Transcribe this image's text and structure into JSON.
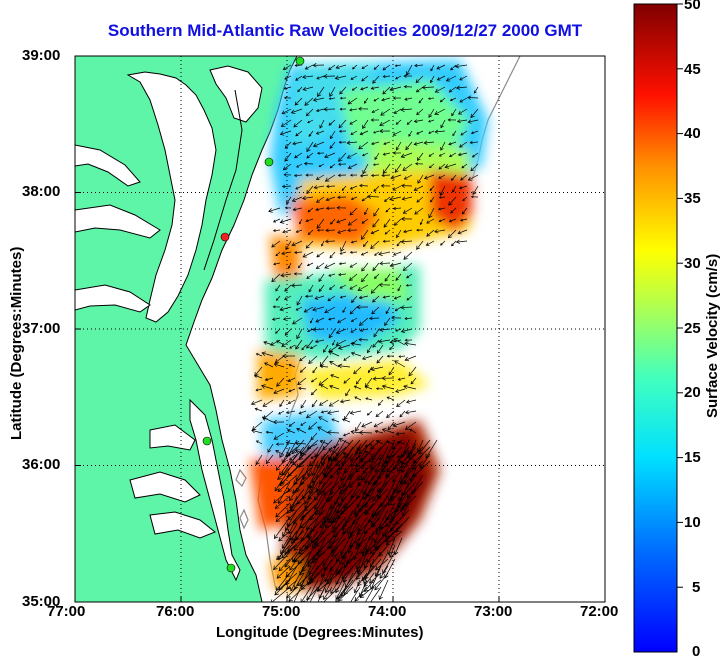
{
  "title": "Southern Mid-Atlantic Raw Velocities 2009/12/27 2000 GMT",
  "axes": {
    "xlabel": "Longitude (Degrees:Minutes)",
    "ylabel": "Latitude (Degrees:Minutes)",
    "xticks": [
      "77:00",
      "76:00",
      "75:00",
      "74:00",
      "73:00",
      "72:00"
    ],
    "yticks": [
      "39:00",
      "38:00",
      "37:00",
      "36:00",
      "35:00"
    ],
    "xlim_deg_west": [
      77,
      72
    ],
    "ylim_deg_north": [
      35,
      39
    ],
    "grid": "dotted"
  },
  "colorbar": {
    "label": "Surface Velocity (cm/s)",
    "ticks": [
      "0",
      "5",
      "10",
      "15",
      "20",
      "25",
      "30",
      "35",
      "40",
      "45",
      "50"
    ],
    "range": [
      0,
      50
    ],
    "colormap": "jet"
  },
  "colors": {
    "title": "#1010e0",
    "land": "#5ff5a8",
    "coast": "#000000",
    "bathymetry": "#8a8a8a",
    "station": "#22dd22",
    "station_alt": "#ee2222"
  }
}
